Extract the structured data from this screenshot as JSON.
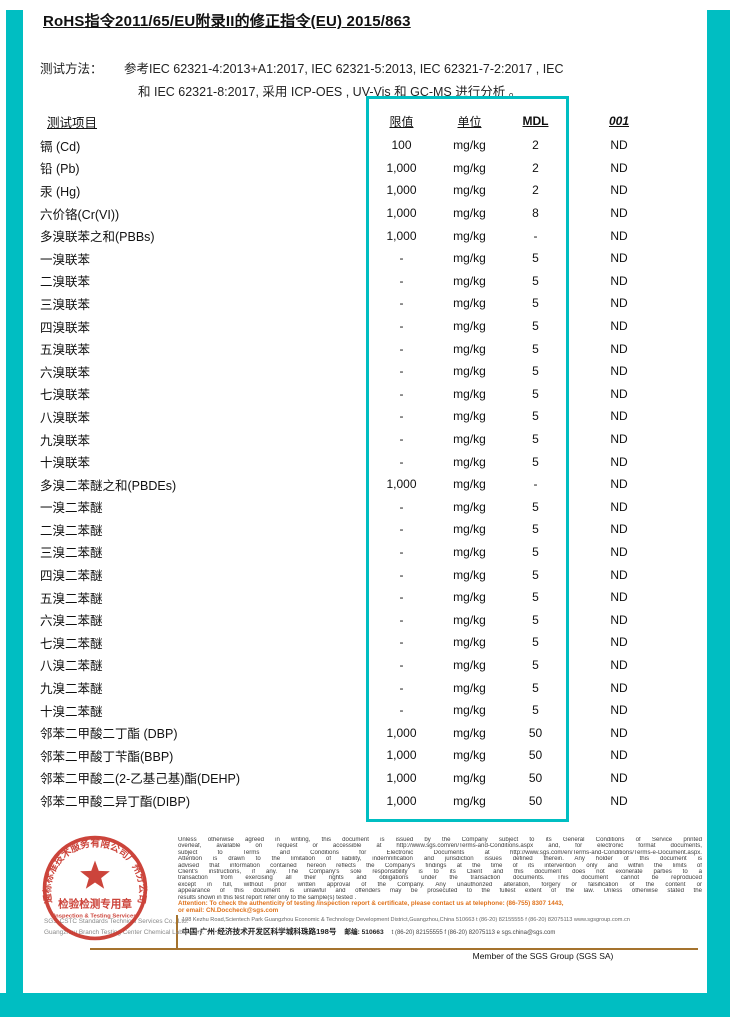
{
  "colors": {
    "accent": "#00bec2",
    "stamp_red": "#c8352b",
    "attention_orange": "#e0731d",
    "rule_brown": "#a5732e"
  },
  "page": {
    "title": "RoHS指令2011/65/EU附录II的修正指令(EU) 2015/863"
  },
  "method": {
    "label": "测试方法：",
    "line1": "参考IEC 62321-4:2013+A1:2017, IEC 62321-5:2013,  IEC 62321-7-2:2017 , IEC",
    "line2": "和 IEC 62321-8:2017, 采用 ICP-OES , UV-Vis 和 GC-MS 进行分析 。"
  },
  "results_table": {
    "headers": [
      "测试项目",
      "限值",
      "单位",
      "MDL",
      "001"
    ],
    "rows": [
      [
        "镉 (Cd)",
        "100",
        "mg/kg",
        "2",
        "ND"
      ],
      [
        "铅 (Pb)",
        "1,000",
        "mg/kg",
        "2",
        "ND"
      ],
      [
        "汞 (Hg)",
        "1,000",
        "mg/kg",
        "2",
        "ND"
      ],
      [
        "六价铬(Cr(VI))",
        "1,000",
        "mg/kg",
        "8",
        "ND"
      ],
      [
        "多溴联苯之和(PBBs)",
        "1,000",
        "mg/kg",
        "-",
        "ND"
      ],
      [
        "一溴联苯",
        "-",
        "mg/kg",
        "5",
        "ND"
      ],
      [
        "二溴联苯",
        "-",
        "mg/kg",
        "5",
        "ND"
      ],
      [
        "三溴联苯",
        "-",
        "mg/kg",
        "5",
        "ND"
      ],
      [
        "四溴联苯",
        "-",
        "mg/kg",
        "5",
        "ND"
      ],
      [
        "五溴联苯",
        "-",
        "mg/kg",
        "5",
        "ND"
      ],
      [
        "六溴联苯",
        "-",
        "mg/kg",
        "5",
        "ND"
      ],
      [
        "七溴联苯",
        "-",
        "mg/kg",
        "5",
        "ND"
      ],
      [
        "八溴联苯",
        "-",
        "mg/kg",
        "5",
        "ND"
      ],
      [
        "九溴联苯",
        "-",
        "mg/kg",
        "5",
        "ND"
      ],
      [
        "十溴联苯",
        "-",
        "mg/kg",
        "5",
        "ND"
      ],
      [
        "多溴二苯醚之和(PBDEs)",
        "1,000",
        "mg/kg",
        "-",
        "ND"
      ],
      [
        "一溴二苯醚",
        "-",
        "mg/kg",
        "5",
        "ND"
      ],
      [
        "二溴二苯醚",
        "-",
        "mg/kg",
        "5",
        "ND"
      ],
      [
        "三溴二苯醚",
        "-",
        "mg/kg",
        "5",
        "ND"
      ],
      [
        "四溴二苯醚",
        "-",
        "mg/kg",
        "5",
        "ND"
      ],
      [
        "五溴二苯醚",
        "-",
        "mg/kg",
        "5",
        "ND"
      ],
      [
        "六溴二苯醚",
        "-",
        "mg/kg",
        "5",
        "ND"
      ],
      [
        "七溴二苯醚",
        "-",
        "mg/kg",
        "5",
        "ND"
      ],
      [
        "八溴二苯醚",
        "-",
        "mg/kg",
        "5",
        "ND"
      ],
      [
        "九溴二苯醚",
        "-",
        "mg/kg",
        "5",
        "ND"
      ],
      [
        "十溴二苯醚",
        "-",
        "mg/kg",
        "5",
        "ND"
      ],
      [
        "邻苯二甲酸二丁酯 (DBP)",
        "1,000",
        "mg/kg",
        "50",
        "ND"
      ],
      [
        "邻苯二甲酸丁苄酯(BBP)",
        "1,000",
        "mg/kg",
        "50",
        "ND"
      ],
      [
        "邻苯二甲酸二(2-乙基己基)酯(DEHP)",
        "1,000",
        "mg/kg",
        "50",
        "ND"
      ],
      [
        "邻苯二甲酸二异丁酯(DIBP)",
        "1,000",
        "mg/kg",
        "50",
        "ND"
      ]
    ]
  },
  "stamp": {
    "arc_text": "通标标准技术服务有限公司广州分公司",
    "center_line1": "检验检测专用章",
    "center_line2": "Inspection & Testing Services",
    "company_en1": "SGS-CSTC Standards Technical Services Co., Ltd.",
    "company_en2": "Guangzhou Branch Testing Center Chemical Laboratory."
  },
  "footer": {
    "legal_lines": [
      "Unless otherwise agreed in writing, this document is issued by the Company subject to its General Conditions of Service printed",
      "overleaf, available on request or accessible at http://www.sgs.com/en/Terms-and-Conditions.aspx and, for electronic format documents,",
      "subject to Terms and Conditions for Electronic Documents at http://www.sgs.com/en/Terms-and-Conditions/Terms-e-Document.aspx.",
      "Attention is drawn to the limitation of liability, indemnification and jurisdiction issues defined therein. Any holder of this document is",
      "advised that information contained hereon reflects the Company's findings at the time of its intervention only and within the limits of",
      "Client's instructions, if any. The Company's sole responsibility is to its Client and this document does not exonerate parties to a",
      "transaction from exercising all their rights and obligations under the transaction documents. This document cannot be reproduced",
      "except in full, without prior written approval of the Company. Any unauthorized alteration, forgery or falsification of the content or",
      "appearance of this document is unlawful and offenders may be prosecuted to the fullest extent of the law. Unless otherwise stated the",
      "results shown in this test report refer only to the sample(s) tested ."
    ],
    "attention_line1": "Attention: To check the authenticity of testing /inspection report & certificate, please contact us at telephone: (86-755) 8307 1443,",
    "attention_line2": "or email: CN.Doccheck@sgs.com",
    "address_en": "198 Kezhu Road,Scientech Park Guangzhou Economic & Technology Development District,Guangzhou,China 510663   t (86-20) 82155555   f (86-20) 82075113   www.sgsgroup.com.cn",
    "address_cn": "中国·广州·经济技术开发区科学城科珠路198号",
    "address_postal": "邮编: 510663",
    "address_tel": "t (86-20) 82155555  f (86-20) 82075113   e  sgs.china@sgs.com",
    "member": "Member of the SGS Group (SGS SA)"
  }
}
